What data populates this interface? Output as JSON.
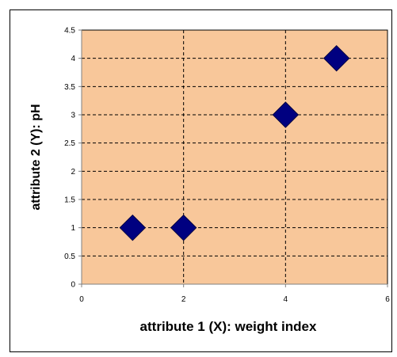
{
  "chart_data": {
    "type": "scatter",
    "title": "",
    "xlabel": "attribute 1 (X): weight index",
    "ylabel": "attribute 2 (Y): pH",
    "xlim": [
      0,
      6
    ],
    "ylim": [
      0,
      4.5
    ],
    "xticks": [
      0,
      2,
      4,
      6
    ],
    "yticks": [
      0,
      0.5,
      1,
      1.5,
      2,
      2.5,
      3,
      3.5,
      4,
      4.5
    ],
    "xtick_labels": [
      "0",
      "2",
      "4",
      "6"
    ],
    "ytick_labels": [
      "0",
      "0.5",
      "1",
      "1.5",
      "2",
      "2.5",
      "3",
      "3.5",
      "4",
      "4.5"
    ],
    "grid": true,
    "legend": "none",
    "plot_background": "#F8C79A",
    "marker": "diamond",
    "marker_color": "#000080",
    "series": [
      {
        "x": [
          1,
          2,
          4,
          5
        ],
        "y": [
          1,
          1,
          3,
          4
        ]
      }
    ]
  }
}
